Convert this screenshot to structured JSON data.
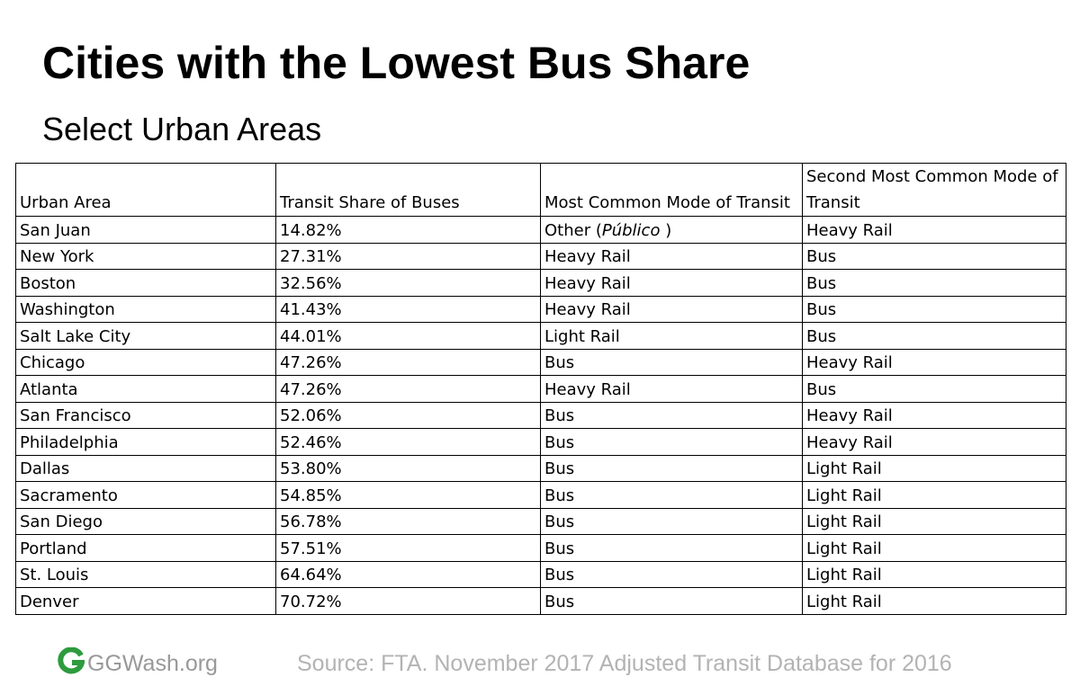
{
  "title": "Cities with the Lowest Bus Share",
  "subtitle": "Select Urban Areas",
  "chart_data": {
    "type": "table",
    "columns": [
      "Urban Area",
      "Transit Share of Buses",
      "Most Common Mode of Transit",
      "Second Most Common Mode of Transit"
    ],
    "rows": [
      {
        "area": "San Juan",
        "share": "14.82%",
        "mode1": "Other (",
        "mode1_italic": "Público",
        "mode1_suffix": " )",
        "mode2": "Heavy Rail"
      },
      {
        "area": "New York",
        "share": "27.31%",
        "mode1": "Heavy Rail",
        "mode2": "Bus"
      },
      {
        "area": "Boston",
        "share": "32.56%",
        "mode1": "Heavy Rail",
        "mode2": "Bus"
      },
      {
        "area": "Washington",
        "share": "41.43%",
        "mode1": "Heavy Rail",
        "mode2": "Bus"
      },
      {
        "area": "Salt Lake City",
        "share": "44.01%",
        "mode1": "Light Rail",
        "mode2": "Bus"
      },
      {
        "area": "Chicago",
        "share": "47.26%",
        "mode1": "Bus",
        "mode2": "Heavy Rail"
      },
      {
        "area": "Atlanta",
        "share": "47.26%",
        "mode1": "Heavy Rail",
        "mode2": "Bus"
      },
      {
        "area": "San Francisco",
        "share": "52.06%",
        "mode1": "Bus",
        "mode2": "Heavy Rail"
      },
      {
        "area": "Philadelphia",
        "share": "52.46%",
        "mode1": "Bus",
        "mode2": "Heavy Rail"
      },
      {
        "area": "Dallas",
        "share": "53.80%",
        "mode1": "Bus",
        "mode2": "Light Rail"
      },
      {
        "area": "Sacramento",
        "share": "54.85%",
        "mode1": "Bus",
        "mode2": "Light Rail"
      },
      {
        "area": "San Diego",
        "share": "56.78%",
        "mode1": "Bus",
        "mode2": "Light Rail"
      },
      {
        "area": "Portland",
        "share": "57.51%",
        "mode1": "Bus",
        "mode2": "Light Rail"
      },
      {
        "area": "St. Louis",
        "share": "64.64%",
        "mode1": "Bus",
        "mode2": "Light Rail"
      },
      {
        "area": "Denver",
        "share": "70.72%",
        "mode1": "Bus",
        "mode2": "Light Rail"
      }
    ]
  },
  "footer": {
    "logo_text": "GGWash.org",
    "logo_icon": "ggwash-logo-icon",
    "source": "Source: FTA. November 2017 Adjusted Transit Database for 2016"
  },
  "colors": {
    "logo_green": "#2e9b3e",
    "footer_text": "#999999",
    "source_text": "#b3b3b3",
    "border": "#000000"
  }
}
